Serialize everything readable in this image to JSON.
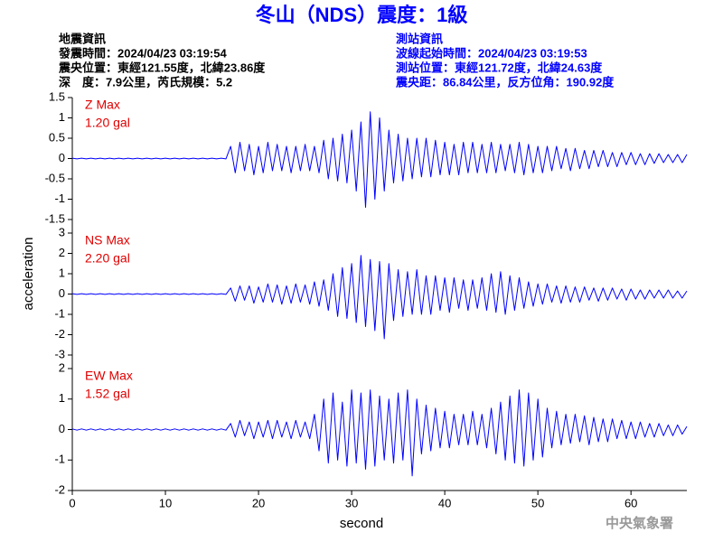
{
  "chart_data": {
    "type": "line",
    "title": "冬山（NDS）震度：1級",
    "info_left": [
      "地震資訊",
      "發震時間：2024/04/23 03:19:54",
      "震央位置：東經121.55度，北緯23.86度",
      "深　度：7.9公里，芮氏規模：5.2"
    ],
    "info_right": [
      "測站資訊",
      "波線起始時間：2024/04/23 03:19:53",
      "測站位置：東經121.72度，北緯24.63度",
      "震央距：86.84公里，反方位角：190.92度"
    ],
    "footer": "中央氣象署",
    "xlabel": "second",
    "ylabel": "acceleration",
    "xlim": [
      0,
      66
    ],
    "xticks": [
      0,
      10,
      20,
      30,
      40,
      50,
      60
    ],
    "x": [
      0,
      0.5,
      1,
      1.5,
      2,
      2.5,
      3,
      3.5,
      4,
      4.5,
      5,
      5.5,
      6,
      6.5,
      7,
      7.5,
      8,
      8.5,
      9,
      9.5,
      10,
      10.5,
      11,
      11.5,
      12,
      12.5,
      13,
      13.5,
      14,
      14.5,
      15,
      15.5,
      16,
      16.5,
      17,
      17.5,
      18,
      18.5,
      19,
      19.5,
      20,
      20.5,
      21,
      21.5,
      22,
      22.5,
      23,
      23.5,
      24,
      24.5,
      25,
      25.5,
      26,
      26.5,
      27,
      27.5,
      28,
      28.5,
      29,
      29.5,
      30,
      30.5,
      31,
      31.5,
      32,
      32.5,
      33,
      33.5,
      34,
      34.5,
      35,
      35.5,
      36,
      36.5,
      37,
      37.5,
      38,
      38.5,
      39,
      39.5,
      40,
      40.5,
      41,
      41.5,
      42,
      42.5,
      43,
      43.5,
      44,
      44.5,
      45,
      45.5,
      46,
      46.5,
      47,
      47.5,
      48,
      48.5,
      49,
      49.5,
      50,
      50.5,
      51,
      51.5,
      52,
      52.5,
      53,
      53.5,
      54,
      54.5,
      55,
      55.5,
      56,
      56.5,
      57,
      57.5,
      58,
      58.5,
      59,
      59.5,
      60,
      60.5,
      61,
      61.5,
      62,
      62.5,
      63,
      63.5,
      64,
      64.5,
      65,
      65.5,
      66
    ],
    "panels": [
      {
        "label": "Z Max",
        "max_label": "1.20 gal",
        "color": "#0000ff",
        "ylim": [
          -1.5,
          1.5
        ],
        "yticks": [
          -1.5,
          -1,
          -0.5,
          0,
          0.5,
          1,
          1.5
        ],
        "values": [
          0.01,
          -0.01,
          0.01,
          -0.01,
          0.01,
          -0.01,
          0.01,
          -0.01,
          0.01,
          -0.01,
          0.01,
          -0.01,
          0.01,
          -0.01,
          0.01,
          -0.01,
          0.01,
          -0.01,
          0.01,
          -0.01,
          0.01,
          -0.01,
          0.01,
          -0.01,
          0.01,
          -0.01,
          0.01,
          -0.01,
          0.01,
          -0.01,
          0.01,
          -0.01,
          0.01,
          -0.01,
          0.3,
          -0.35,
          0.4,
          -0.3,
          0.35,
          -0.4,
          0.3,
          -0.35,
          0.4,
          -0.3,
          0.35,
          -0.3,
          0.3,
          -0.35,
          0.3,
          -0.3,
          0.35,
          -0.3,
          0.3,
          -0.35,
          0.45,
          -0.5,
          0.5,
          -0.55,
          0.6,
          -0.6,
          0.7,
          -0.8,
          0.9,
          -1.2,
          1.15,
          -1.0,
          1.0,
          -0.8,
          0.7,
          -0.6,
          0.6,
          -0.55,
          0.5,
          -0.5,
          0.5,
          -0.45,
          0.5,
          -0.45,
          0.45,
          -0.4,
          0.4,
          -0.4,
          0.35,
          -0.4,
          0.4,
          -0.35,
          0.4,
          -0.35,
          0.35,
          -0.35,
          0.4,
          -0.35,
          0.35,
          -0.3,
          0.35,
          -0.35,
          0.4,
          -0.4,
          0.35,
          -0.35,
          0.3,
          -0.35,
          0.3,
          -0.3,
          0.3,
          -0.25,
          0.25,
          -0.3,
          0.25,
          -0.25,
          0.2,
          -0.25,
          0.2,
          -0.2,
          0.2,
          -0.2,
          0.15,
          -0.2,
          0.15,
          -0.15,
          0.15,
          -0.15,
          0.12,
          -0.15,
          0.12,
          -0.12,
          0.12,
          -0.1,
          0.1,
          -0.1,
          0.1,
          -0.1,
          0.1
        ]
      },
      {
        "label": "NS Max",
        "max_label": "2.20 gal",
        "color": "#0000ff",
        "ylim": [
          -3,
          3
        ],
        "yticks": [
          -3,
          -2,
          -1,
          0,
          1,
          2,
          3
        ],
        "values": [
          0.02,
          -0.02,
          0.02,
          -0.02,
          0.02,
          -0.02,
          0.02,
          -0.02,
          0.02,
          -0.02,
          0.02,
          -0.02,
          0.02,
          -0.02,
          0.02,
          -0.02,
          0.02,
          -0.02,
          0.02,
          -0.02,
          0.02,
          -0.02,
          0.02,
          -0.02,
          0.02,
          -0.02,
          0.02,
          -0.02,
          0.02,
          -0.02,
          0.02,
          -0.02,
          0.02,
          -0.02,
          0.3,
          -0.35,
          0.4,
          -0.3,
          0.4,
          -0.45,
          0.35,
          -0.4,
          0.5,
          -0.4,
          0.45,
          -0.5,
          0.4,
          -0.45,
          0.5,
          -0.4,
          0.45,
          -0.5,
          0.6,
          -0.6,
          0.7,
          -0.8,
          1.0,
          -1.1,
          1.3,
          -1.2,
          1.5,
          -1.4,
          1.9,
          -1.6,
          1.7,
          -1.8,
          1.6,
          -2.2,
          1.5,
          -1.3,
          1.2,
          -1.1,
          1.1,
          -1.0,
          1.2,
          -1.0,
          0.9,
          -1.0,
          0.9,
          -0.8,
          0.8,
          -0.9,
          0.8,
          -0.7,
          0.7,
          -0.8,
          0.7,
          -0.7,
          0.8,
          -0.8,
          1.0,
          -0.9,
          1.1,
          -1.0,
          0.9,
          -0.8,
          0.8,
          -0.7,
          0.6,
          -0.6,
          0.5,
          -0.5,
          0.5,
          -0.4,
          0.4,
          -0.45,
          0.4,
          -0.4,
          0.35,
          -0.4,
          0.35,
          -0.3,
          0.3,
          -0.35,
          0.3,
          -0.3,
          0.3,
          -0.25,
          0.25,
          -0.3,
          0.25,
          -0.25,
          0.2,
          -0.25,
          0.2,
          -0.2,
          0.2,
          -0.2,
          0.2,
          -0.2,
          0.15,
          -0.2,
          0.15
        ]
      },
      {
        "label": "EW Max",
        "max_label": "1.52 gal",
        "color": "#0000ff",
        "ylim": [
          -2,
          2
        ],
        "yticks": [
          -2,
          -1,
          0,
          1,
          2
        ],
        "values": [
          0.02,
          -0.02,
          0.02,
          -0.02,
          0.02,
          -0.02,
          0.02,
          -0.02,
          0.02,
          -0.02,
          0.02,
          -0.02,
          0.02,
          -0.02,
          0.02,
          -0.02,
          0.02,
          -0.02,
          0.02,
          -0.02,
          0.02,
          -0.02,
          0.02,
          -0.02,
          0.02,
          -0.02,
          0.02,
          -0.02,
          0.02,
          -0.02,
          0.02,
          -0.02,
          0.02,
          -0.02,
          0.2,
          -0.25,
          0.3,
          -0.2,
          0.25,
          -0.3,
          0.25,
          -0.25,
          0.3,
          -0.3,
          0.3,
          -0.25,
          0.25,
          -0.3,
          0.3,
          -0.25,
          0.25,
          -0.3,
          0.5,
          -0.7,
          1.0,
          -1.1,
          1.2,
          -1.0,
          0.9,
          -1.2,
          1.3,
          -1.1,
          1.2,
          -1.3,
          1.3,
          -1.2,
          1.1,
          -1.0,
          1.0,
          -1.1,
          1.2,
          -1.0,
          1.3,
          -1.52,
          1.0,
          -0.8,
          0.8,
          -0.7,
          0.7,
          -0.6,
          0.6,
          -0.6,
          0.5,
          -0.5,
          0.5,
          -0.5,
          0.6,
          -0.5,
          0.5,
          -0.6,
          0.7,
          -0.8,
          0.9,
          -1.0,
          1.1,
          -1.1,
          1.3,
          -1.2,
          1.2,
          -1.0,
          1.0,
          -0.9,
          0.7,
          -0.6,
          0.6,
          -0.5,
          0.5,
          -0.45,
          0.5,
          -0.4,
          0.45,
          -0.5,
          0.4,
          -0.4,
          0.35,
          -0.4,
          0.35,
          -0.3,
          0.3,
          -0.3,
          0.25,
          -0.3,
          0.25,
          -0.25,
          0.2,
          -0.25,
          0.2,
          -0.2,
          0.15,
          -0.2,
          0.15,
          -0.15,
          0.1
        ]
      }
    ]
  }
}
